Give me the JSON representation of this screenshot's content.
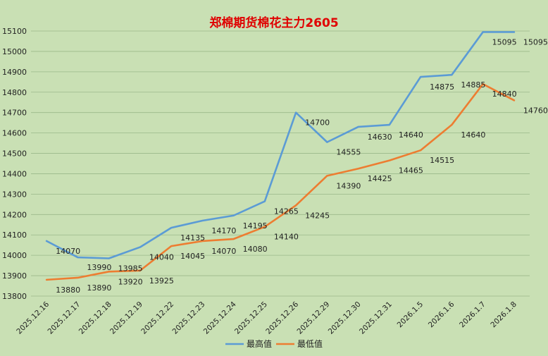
{
  "chart_data": {
    "type": "line",
    "title": "郑棉期货棉花主力2605",
    "categories": [
      "2025.12.16",
      "2025.12.17",
      "2025.12.18",
      "2025.12.19",
      "2025.12.22",
      "2025.12.23",
      "2025.12.24",
      "2025.12.25",
      "2025.12.26",
      "2025.12.29",
      "2025.12.30",
      "2025.12.31",
      "2026.1.5",
      "2026.1.6",
      "2026.1.7",
      "2026.1.8"
    ],
    "series": [
      {
        "name": "最高值",
        "color": "#5b9bd5",
        "values": [
          14070,
          13990,
          13985,
          14040,
          14135,
          14170,
          14195,
          14265,
          14700,
          14555,
          14630,
          14640,
          14875,
          14885,
          15095,
          15095
        ]
      },
      {
        "name": "最低值",
        "color": "#ed7d31",
        "values": [
          13880,
          13890,
          13920,
          13925,
          14045,
          14070,
          14080,
          14140,
          14245,
          14390,
          14425,
          14465,
          14515,
          14640,
          14840,
          14760
        ]
      }
    ],
    "yticks": [
      13800,
      13900,
      14000,
      14100,
      14200,
      14300,
      14400,
      14500,
      14600,
      14700,
      14800,
      14900,
      15000,
      15100
    ],
    "ylim": [
      13800,
      15100
    ],
    "grid": true,
    "legend_position": "bottom"
  }
}
